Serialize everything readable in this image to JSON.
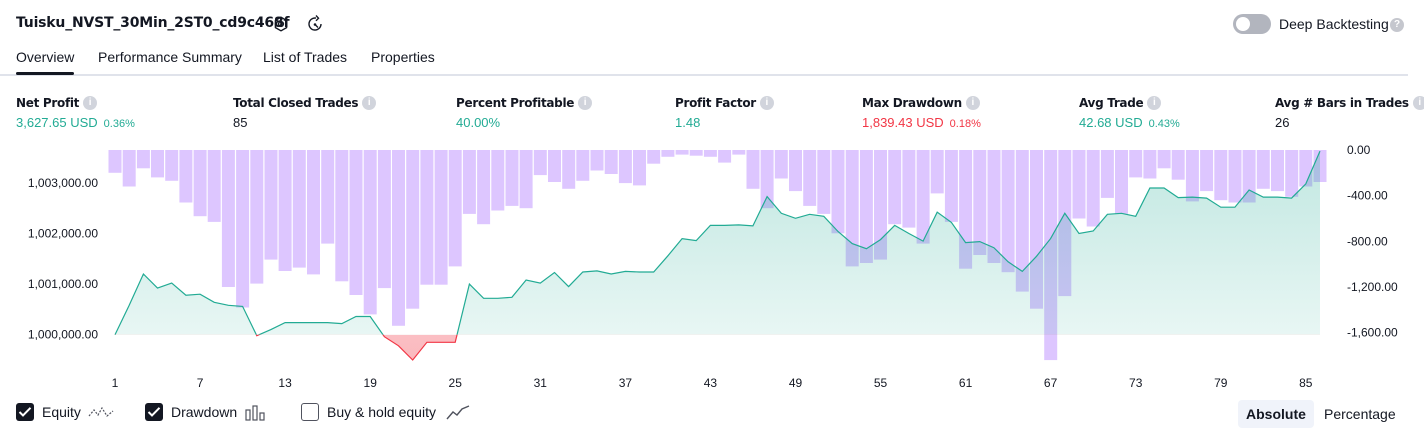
{
  "header": {
    "title": "Tuisku_NVST_30Min_2ST0_cd9c468f",
    "deep_backtesting_label": "Deep Backtesting",
    "help_glyph": "?"
  },
  "tabs": [
    {
      "label": "Overview",
      "active": true
    },
    {
      "label": "Performance Summary",
      "active": false
    },
    {
      "label": "List of Trades",
      "active": false
    },
    {
      "label": "Properties",
      "active": false
    }
  ],
  "metrics": [
    {
      "label": "Net Profit",
      "value": "3,627.65 USD",
      "pct": "0.36%",
      "color": "#22ab94"
    },
    {
      "label": "Total Closed Trades",
      "value": "85",
      "pct": "",
      "color": "#131722"
    },
    {
      "label": "Percent Profitable",
      "value": "40.00%",
      "pct": "",
      "color": "#22ab94"
    },
    {
      "label": "Profit Factor",
      "value": "1.48",
      "pct": "",
      "color": "#22ab94"
    },
    {
      "label": "Max Drawdown",
      "value": "1,839.43 USD",
      "pct": "0.18%",
      "color": "#f23645"
    },
    {
      "label": "Avg Trade",
      "value": "42.68 USD",
      "pct": "0.43%",
      "color": "#22ab94"
    },
    {
      "label": "Avg # Bars in Trades",
      "value": "26",
      "pct": "",
      "color": "#131722"
    }
  ],
  "legend": {
    "equity_label": "Equity",
    "drawdown_label": "Drawdown",
    "buyhold_label": "Buy & hold equity",
    "equity_checked": true,
    "drawdown_checked": true,
    "buyhold_checked": false
  },
  "modes": {
    "absolute_label": "Absolute",
    "percentage_label": "Percentage",
    "active": "absolute"
  },
  "chart_data": {
    "type": "area",
    "x_tick_labels": [
      "1",
      "7",
      "13",
      "19",
      "25",
      "31",
      "37",
      "43",
      "49",
      "55",
      "61",
      "67",
      "73",
      "79",
      "85"
    ],
    "x_range": [
      1,
      86
    ],
    "left_axis": {
      "ticks": [
        "1,000,000.00",
        "1,001,000.00",
        "1,002,000.00",
        "1,003,000.00"
      ],
      "tick_values": [
        1000000,
        1001000,
        1002000,
        1003000
      ],
      "range": [
        999500,
        1003650
      ]
    },
    "right_axis": {
      "ticks": [
        "0.00",
        "-400.00",
        "-800.00",
        "-1,200.00",
        "-1,600.00"
      ],
      "tick_values": [
        0,
        -400,
        -800,
        -1200,
        -1600
      ],
      "range": [
        -1839.43,
        0
      ]
    },
    "series": [
      {
        "name": "Equity",
        "axis": "left",
        "color": "#22ab94",
        "x": [
          1,
          2,
          3,
          4,
          5,
          6,
          7,
          8,
          9,
          10,
          11,
          12,
          13,
          14,
          15,
          16,
          17,
          18,
          19,
          20,
          21,
          22,
          23,
          24,
          25,
          26,
          27,
          28,
          29,
          30,
          31,
          32,
          33,
          34,
          35,
          36,
          37,
          38,
          39,
          40,
          41,
          42,
          43,
          44,
          45,
          46,
          47,
          48,
          49,
          50,
          51,
          52,
          53,
          54,
          55,
          56,
          57,
          58,
          59,
          60,
          61,
          62,
          63,
          64,
          65,
          66,
          67,
          68,
          69,
          70,
          71,
          72,
          73,
          74,
          75,
          76,
          77,
          78,
          79,
          80,
          81,
          82,
          83,
          84,
          85,
          86
        ],
        "values": [
          1000000,
          1000580,
          1001200,
          1000920,
          1001020,
          1000780,
          1000800,
          1000640,
          1000580,
          1000560,
          999980,
          1000100,
          1000240,
          1000240,
          1000240,
          1000240,
          1000220,
          1000360,
          1000360,
          999960,
          999780,
          999500,
          999850,
          999850,
          999850,
          1001000,
          1000720,
          1000720,
          1000740,
          1001080,
          1001020,
          1001230,
          1000950,
          1001240,
          1001260,
          1001200,
          1001250,
          1001240,
          1001240,
          1001560,
          1001900,
          1001860,
          1002160,
          1002160,
          1002170,
          1002150,
          1002730,
          1002400,
          1002300,
          1002380,
          1002340,
          1002040,
          1001800,
          1001700,
          1001880,
          1002160,
          1002000,
          1001850,
          1002420,
          1002220,
          1001820,
          1001840,
          1001720,
          1001440,
          1001250,
          1001550,
          1001900,
          1002400,
          1002000,
          1002050,
          1002380,
          1002400,
          1002340,
          1002900,
          1002900,
          1002710,
          1002720,
          1002700,
          1002520,
          1002520,
          1002860,
          1002720,
          1002720,
          1002700,
          1002980,
          1003628
        ]
      },
      {
        "name": "Drawdown",
        "axis": "right",
        "color": "#d1b3ff",
        "x": [
          1,
          2,
          3,
          4,
          5,
          6,
          7,
          8,
          9,
          10,
          11,
          12,
          13,
          14,
          15,
          16,
          17,
          18,
          19,
          20,
          21,
          22,
          23,
          24,
          25,
          26,
          27,
          28,
          29,
          30,
          31,
          32,
          33,
          34,
          35,
          36,
          37,
          38,
          39,
          40,
          41,
          42,
          43,
          44,
          45,
          46,
          47,
          48,
          49,
          50,
          51,
          52,
          53,
          54,
          55,
          56,
          57,
          58,
          59,
          60,
          61,
          62,
          63,
          64,
          65,
          66,
          67,
          68,
          69,
          70,
          71,
          72,
          73,
          74,
          75,
          76,
          77,
          78,
          79,
          80,
          81,
          82,
          83,
          84,
          85,
          86
        ],
        "values": [
          -200,
          -320,
          -160,
          -240,
          -270,
          -460,
          -580,
          -630,
          -1200,
          -1380,
          -1170,
          -960,
          -1060,
          -1030,
          -1090,
          -820,
          -1150,
          -1270,
          -1440,
          -1210,
          -1540,
          -1390,
          -1180,
          -1180,
          -1020,
          -560,
          -650,
          -530,
          -490,
          -510,
          -220,
          -280,
          -340,
          -270,
          -180,
          -210,
          -290,
          -310,
          -120,
          -60,
          -40,
          -50,
          -60,
          -110,
          -40,
          -340,
          -510,
          -250,
          -360,
          -490,
          -560,
          -730,
          -1020,
          -990,
          -960,
          -650,
          -680,
          -820,
          -380,
          -630,
          -1040,
          -920,
          -990,
          -1070,
          -1240,
          -1390,
          -1840,
          -1280,
          -600,
          -670,
          -420,
          -560,
          -240,
          -250,
          -160,
          -260,
          -450,
          -360,
          -440,
          -460,
          -460,
          -340,
          -360,
          -410,
          -320,
          -280
        ]
      }
    ],
    "legend": [
      "Equity",
      "Drawdown",
      "Buy & hold equity"
    ],
    "legend_position": "bottom-left",
    "grid": false
  },
  "colors": {
    "accent_green": "#22ab94",
    "negative_red": "#f23645",
    "drawdown_purple": "#d1b3ff",
    "text": "#131722"
  },
  "icons": {
    "settings": "gear-icon",
    "compare": "compare-icon",
    "equity_legend": "equity-dashed-icon",
    "drawdown_legend": "bars-icon",
    "buyhold_legend": "line-icon"
  }
}
